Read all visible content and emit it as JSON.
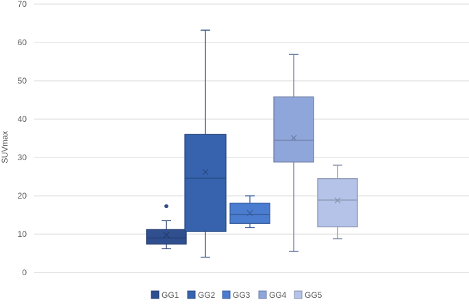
{
  "chart_data": {
    "type": "boxplot",
    "title": "",
    "xlabel": "",
    "ylabel": "SUVmax",
    "ylim": [
      0,
      70
    ],
    "yticks": [
      0,
      10,
      20,
      30,
      40,
      50,
      60,
      70
    ],
    "grid": true,
    "legend_position": "bottom",
    "series": [
      {
        "name": "GG1",
        "color": "#2f4f8f",
        "min": 6.2,
        "q1": 7.4,
        "median": 9.0,
        "q3": 11.2,
        "max": 13.5,
        "mean": 9.8,
        "outliers": [
          17.3
        ]
      },
      {
        "name": "GG2",
        "color": "#3763ae",
        "min": 4.0,
        "q1": 10.7,
        "median": 24.6,
        "q3": 36.0,
        "max": 63.2,
        "mean": 26.2,
        "outliers": []
      },
      {
        "name": "GG3",
        "color": "#4a7cd0",
        "min": 11.7,
        "q1": 12.8,
        "median": 15.1,
        "q3": 18.1,
        "max": 20.0,
        "mean": 15.5,
        "outliers": []
      },
      {
        "name": "GG4",
        "color": "#8fa6da",
        "min": 5.5,
        "q1": 28.8,
        "median": 34.5,
        "q3": 45.8,
        "max": 56.9,
        "mean": 35.1,
        "outliers": []
      },
      {
        "name": "GG5",
        "color": "#b4c3e7",
        "min": 8.8,
        "q1": 11.9,
        "median": 18.9,
        "q3": 24.5,
        "max": 28.0,
        "mean": 18.8,
        "outliers": []
      }
    ]
  }
}
